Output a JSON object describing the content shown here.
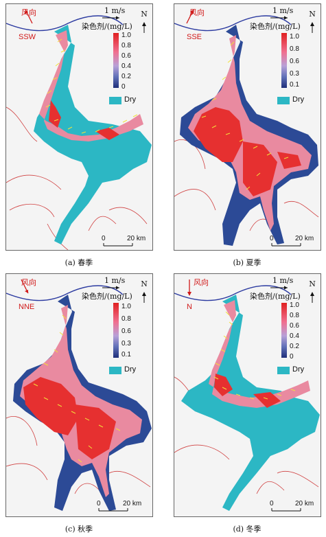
{
  "legend": {
    "speed": "1 m/s",
    "north": "N",
    "dye_title": "染色剂/(mg/L)",
    "dry": "Dry",
    "scale_zero": "0",
    "scale_dist": "20 km",
    "wind_label": "风向",
    "ticks_a": [
      "1.0",
      "0.8",
      "0.6",
      "0.4",
      "0.2",
      "0"
    ],
    "ticks_b": [
      "1.0",
      "0.8",
      "0.6",
      "0.3",
      "0.1"
    ],
    "ticks_d": [
      "1.0",
      "0.8",
      "0.6",
      "0.4",
      "0.2",
      "0"
    ]
  },
  "panels": [
    {
      "id": "a",
      "caption": "(a) 春季",
      "wind": "SSW"
    },
    {
      "id": "b",
      "caption": "(b) 夏季",
      "wind": "SSE"
    },
    {
      "id": "c",
      "caption": "(c) 秋季",
      "wind": "NNE"
    },
    {
      "id": "d",
      "caption": "(d) 冬季",
      "wind": "N"
    }
  ],
  "colors": {
    "dry": "#2cb7c4",
    "high": "#e63030",
    "mid": "#e98aa0",
    "low": "#27488f",
    "arrow": "#f2e23a",
    "wind": "#d01818",
    "river": "#2b3aa0",
    "boundary": "#d04040"
  }
}
